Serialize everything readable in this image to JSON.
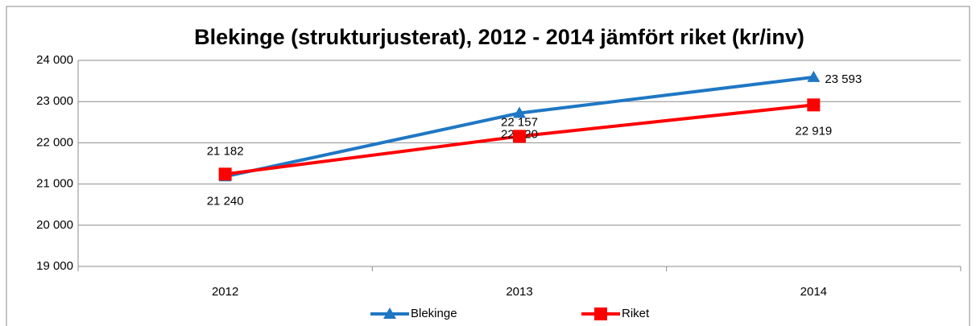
{
  "chart_data": {
    "type": "line",
    "title": "Blekinge (strukturjusterat), 2012 - 2014 jämfört riket (kr/inv)",
    "categories": [
      "2012",
      "2013",
      "2014"
    ],
    "series": [
      {
        "name": "Blekinge",
        "color": "#1f77c4",
        "marker": "triangle",
        "values": [
          21182,
          22720,
          23593
        ],
        "value_labels": [
          "21 182",
          "22 720",
          "23 593"
        ]
      },
      {
        "name": "Riket",
        "color": "#ff0000",
        "marker": "square",
        "values": [
          21240,
          22157,
          22919
        ],
        "value_labels": [
          "21 240",
          "22 157",
          "22 919"
        ]
      }
    ],
    "ylim": [
      19000,
      24000
    ],
    "yticks": [
      {
        "value": 19000,
        "label": "19 000"
      },
      {
        "value": 20000,
        "label": "20 000"
      },
      {
        "value": 21000,
        "label": "21 000"
      },
      {
        "value": 22000,
        "label": "22 000"
      },
      {
        "value": 23000,
        "label": "23 000"
      },
      {
        "value": 24000,
        "label": "24 000"
      }
    ],
    "grid": true,
    "legend": "bottom"
  }
}
